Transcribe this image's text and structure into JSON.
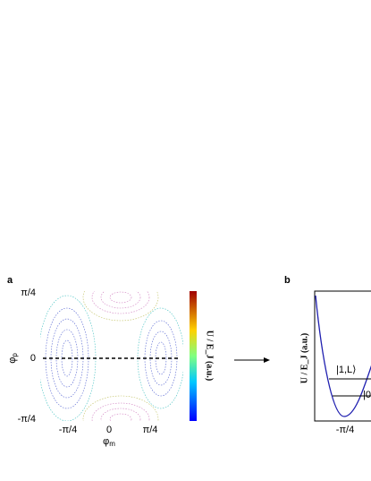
{
  "panel_a": {
    "label": "a",
    "y_label": {
      "symbol": "φ",
      "subscript": "p"
    },
    "y_ticks": [
      "π/4",
      "0",
      "-π/4"
    ],
    "x_label": {
      "symbol": "φ",
      "subscript": "m"
    },
    "x_ticks": [
      "-π/4",
      "0",
      "π/4"
    ],
    "colorbar_label": "U / E_J (a.u.)"
  },
  "panel_b": {
    "label": "b",
    "y_label": "U / E_J (a.u.)",
    "x_ticks": [
      "-π/4"
    ],
    "states": [
      "|1,L⟩",
      "|0"
    ]
  }
}
